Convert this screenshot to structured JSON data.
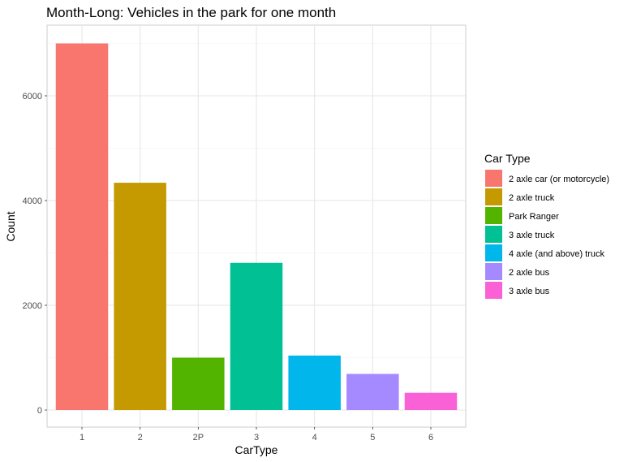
{
  "chart_data": {
    "type": "bar",
    "title": "Month-Long: Vehicles in the park for one month",
    "xlabel": "CarType",
    "ylabel": "Count",
    "categories": [
      "1",
      "2",
      "2P",
      "3",
      "4",
      "5",
      "6"
    ],
    "values": [
      7000,
      4340,
      1000,
      2810,
      1040,
      690,
      330
    ],
    "ylim": [
      0,
      7000
    ],
    "yticks": [
      0,
      2000,
      4000,
      6000
    ],
    "grid": true,
    "legend": {
      "title": "Car Type",
      "placement": "right",
      "entries": [
        {
          "label": "2 axle car (or motorcycle)",
          "color": "#F8766D"
        },
        {
          "label": "2 axle truck",
          "color": "#C49A00"
        },
        {
          "label": "Park Ranger",
          "color": "#53B400"
        },
        {
          "label": "3 axle truck",
          "color": "#00C094"
        },
        {
          "label": "4 axle (and above) truck",
          "color": "#00B6EB"
        },
        {
          "label": "2 axle bus",
          "color": "#A58AFF"
        },
        {
          "label": "3 axle bus",
          "color": "#FB61D7"
        }
      ]
    },
    "colors": [
      "#F8766D",
      "#C49A00",
      "#53B400",
      "#00C094",
      "#00B6EB",
      "#A58AFF",
      "#FB61D7"
    ]
  }
}
